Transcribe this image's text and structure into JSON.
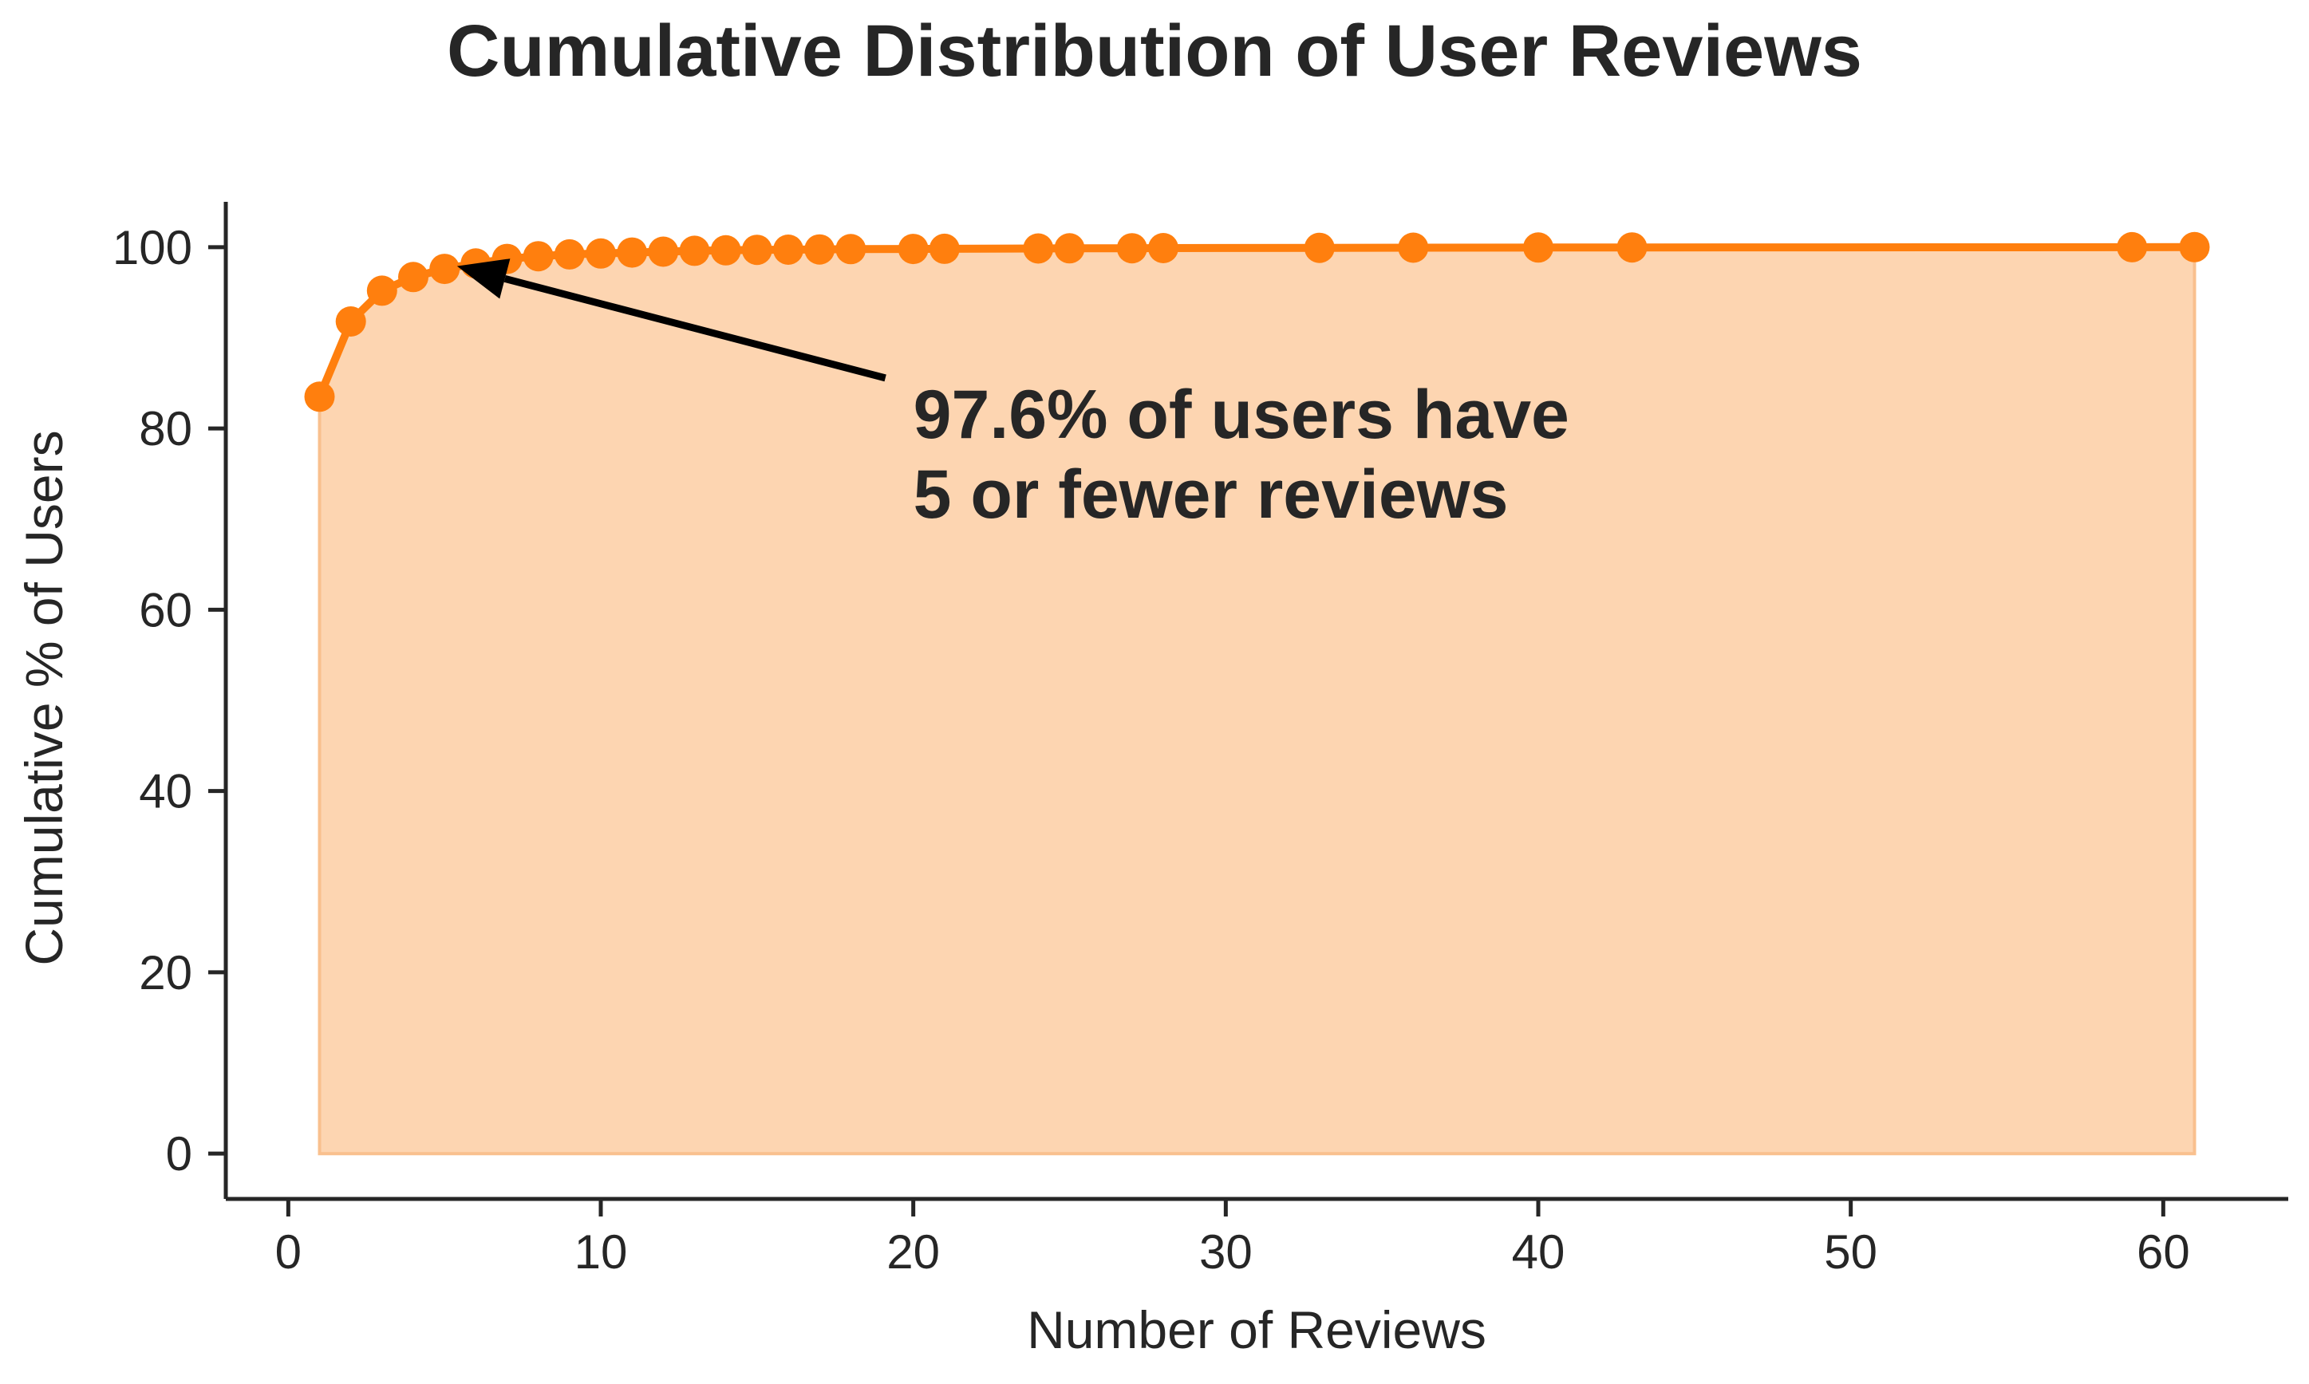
{
  "chart_data": {
    "type": "line",
    "title": "Cumulative Distribution of User Reviews",
    "xlabel": "Number of Reviews",
    "ylabel": "Cumulative % of Users",
    "xlim": [
      -2,
      64
    ],
    "ylim": [
      -5,
      105
    ],
    "xticks": [
      0,
      10,
      20,
      30,
      40,
      50,
      60
    ],
    "yticks": [
      0,
      20,
      40,
      60,
      80,
      100
    ],
    "grid": false,
    "fill_under": true,
    "series": [
      {
        "x": [
          1,
          2,
          3,
          4,
          5,
          6,
          7,
          8,
          9,
          10,
          11,
          12,
          13,
          14,
          15,
          16,
          17,
          18,
          20,
          21,
          24,
          25,
          27,
          28,
          33,
          36,
          40,
          43,
          59,
          61
        ],
        "values": [
          83.5,
          91.8,
          95.2,
          96.7,
          97.6,
          98.2,
          98.7,
          99.0,
          99.2,
          99.3,
          99.4,
          99.5,
          99.6,
          99.65,
          99.7,
          99.72,
          99.75,
          99.78,
          99.8,
          99.82,
          99.85,
          99.87,
          99.88,
          99.9,
          99.92,
          99.94,
          99.96,
          99.97,
          99.99,
          100.0
        ]
      }
    ],
    "annotation": {
      "lines": [
        "97.6% of users have",
        "5 or fewer reviews"
      ],
      "target_x": 5.4,
      "target_y": 97.9,
      "text_x": 20,
      "text_y": 81.6
    },
    "colors": {
      "line": "#ff7f0e",
      "fill": "#fdd5b1",
      "axis": "#262626",
      "arrow": "#000000"
    }
  }
}
